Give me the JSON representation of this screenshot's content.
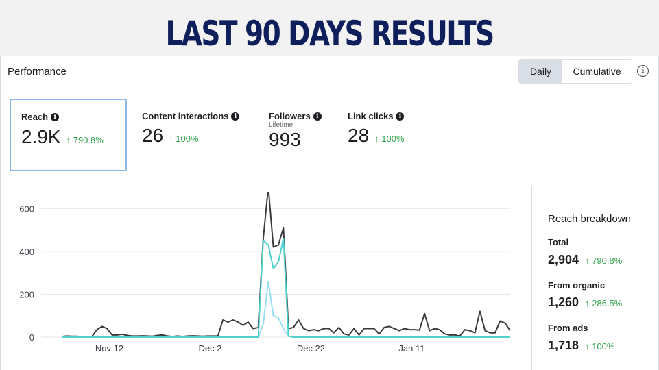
{
  "banner": {
    "title": "LAST 90 DAYS RESULTS"
  },
  "performance": {
    "title": "Performance",
    "toggle": {
      "daily": "Daily",
      "cumulative": "Cumulative"
    },
    "info_icon": "i"
  },
  "metrics": [
    {
      "label": "Reach",
      "value": "2.9K",
      "change": "↑ 790.8%",
      "info": "i"
    },
    {
      "label": "Content interactions",
      "value": "26",
      "change": "↑ 100%",
      "info": "i"
    },
    {
      "label": "Followers",
      "sub": "Lifetime",
      "value": "993",
      "info": "i"
    },
    {
      "label": "Link clicks",
      "value": "28",
      "change": "↑ 100%",
      "info": "i"
    }
  ],
  "breakdown": {
    "title": "Reach breakdown",
    "items": [
      {
        "label": "Total",
        "value": "2,904",
        "change": "↑ 790.8%"
      },
      {
        "label": "From organic",
        "value": "1,260",
        "change": "↑ 286.5%"
      },
      {
        "label": "From ads",
        "value": "1,718",
        "change": "↑ 100%"
      }
    ]
  },
  "colors": {
    "total": "#3a3b3d",
    "ads": "#4fd1cc",
    "organic": "#9adcf5",
    "positive": "#31a24c",
    "selected_border": "#8bb7ec"
  },
  "chart_data": {
    "type": "line",
    "ylim": [
      0,
      700
    ],
    "yticks": [
      0,
      200,
      400,
      600
    ],
    "ytick_labels": [
      "0",
      "200",
      "400",
      "600"
    ],
    "xtick_labels": [
      "Nov 12",
      "Dec 2",
      "Dec 22",
      "Jan 11"
    ],
    "xtick_days": [
      10,
      30,
      50,
      70
    ],
    "series": [
      {
        "key": "total",
        "values": [
          3,
          5,
          4,
          4,
          2,
          3,
          3,
          35,
          50,
          40,
          10,
          10,
          13,
          8,
          5,
          5,
          6,
          5,
          4,
          8,
          10,
          5,
          3,
          5,
          3,
          5,
          6,
          5,
          4,
          5,
          5,
          5,
          80,
          70,
          80,
          70,
          55,
          70,
          40,
          45,
          460,
          700,
          420,
          430,
          510,
          40,
          45,
          80,
          40,
          30,
          35,
          30,
          40,
          40,
          20,
          45,
          15,
          10,
          40,
          10,
          40,
          40,
          40,
          15,
          45,
          50,
          40,
          30,
          40,
          35,
          35,
          33,
          110,
          30,
          40,
          35,
          15,
          10,
          10,
          5,
          35,
          30,
          20,
          120,
          30,
          20,
          20,
          75,
          65,
          30
        ]
      },
      {
        "key": "ads",
        "values": [
          0,
          0,
          0,
          0,
          0,
          0,
          0,
          0,
          0,
          0,
          0,
          0,
          0,
          0,
          0,
          0,
          0,
          0,
          0,
          0,
          0,
          0,
          0,
          0,
          0,
          0,
          0,
          0,
          0,
          0,
          0,
          0,
          0,
          0,
          0,
          0,
          0,
          0,
          0,
          0,
          450,
          430,
          320,
          350,
          460,
          5,
          0,
          0,
          0,
          0,
          0,
          0,
          0,
          0,
          0,
          0,
          0,
          0,
          0,
          0,
          0,
          0,
          0,
          0,
          0,
          0,
          0,
          0,
          0,
          0,
          0,
          0,
          0,
          0,
          0,
          0,
          0,
          0,
          0,
          0,
          0,
          0,
          0,
          0,
          0,
          0,
          0,
          0,
          0,
          0
        ]
      },
      {
        "key": "organic",
        "values": [
          0,
          0,
          0,
          0,
          0,
          0,
          0,
          0,
          0,
          0,
          0,
          0,
          0,
          0,
          0,
          0,
          0,
          0,
          0,
          0,
          0,
          0,
          0,
          0,
          0,
          0,
          0,
          0,
          0,
          0,
          0,
          0,
          0,
          0,
          0,
          0,
          0,
          0,
          0,
          0,
          60,
          260,
          100,
          90,
          40,
          5,
          0,
          0,
          0,
          0,
          0,
          0,
          0,
          0,
          0,
          0,
          0,
          0,
          0,
          0,
          0,
          0,
          0,
          0,
          0,
          0,
          0,
          0,
          0,
          0,
          0,
          0,
          0,
          0,
          0,
          0,
          0,
          0,
          0,
          0,
          0,
          0,
          0,
          0,
          0,
          0,
          0,
          0,
          0,
          0
        ]
      }
    ]
  }
}
